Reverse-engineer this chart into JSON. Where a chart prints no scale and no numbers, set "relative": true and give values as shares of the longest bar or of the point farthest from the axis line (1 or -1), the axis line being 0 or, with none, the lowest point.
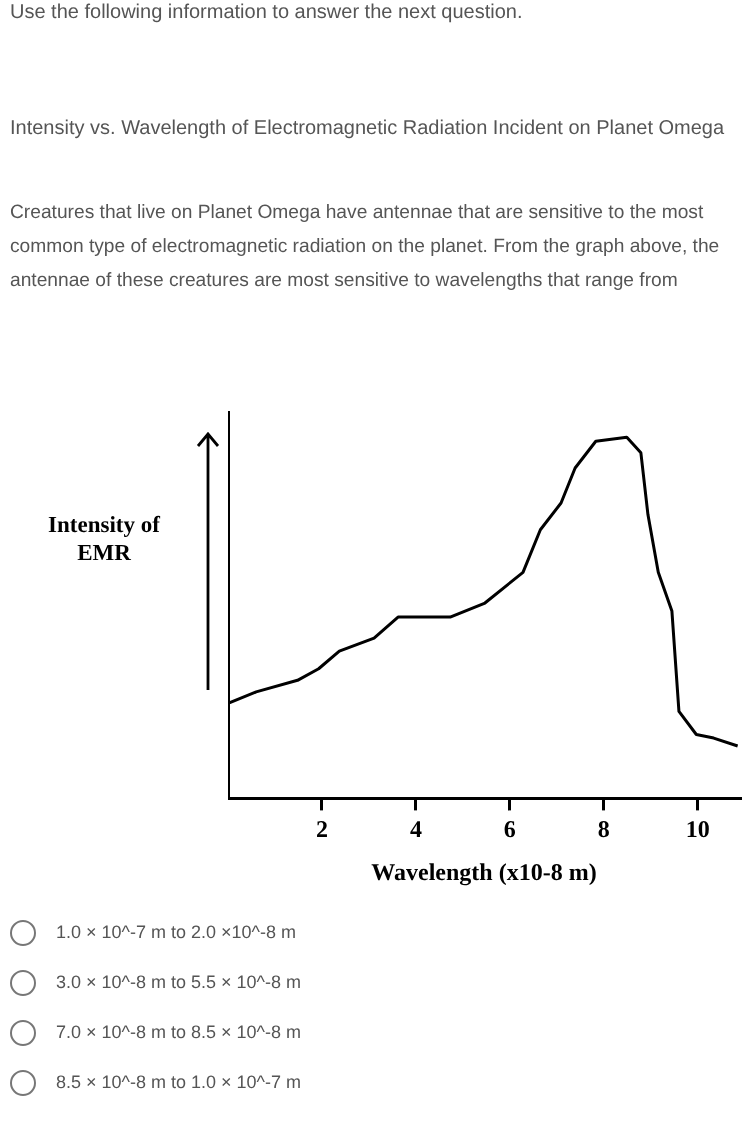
{
  "chart_data": {
    "type": "line",
    "title": "Intensity vs. Wavelength of Electromagnetic Radiation Incident on Planet Omega",
    "xlabel": "Wavelength (x10-8 m)",
    "ylabel": "Intensity of EMR",
    "relative": true,
    "x": [
      0,
      0.6,
      1.48,
      1.93,
      2.37,
      3.11,
      3.62,
      4.73,
      5.47,
      6.28,
      6.65,
      7.09,
      7.39,
      7.83,
      8.49,
      8.79,
      8.94,
      9.16,
      9.45,
      9.6,
      9.97,
      10.34,
      10.85
    ],
    "series": [
      {
        "color": "#000000",
        "values": [
          0.263,
          0.295,
          0.327,
          0.359,
          0.408,
          0.444,
          0.502,
          0.502,
          0.541,
          0.626,
          0.744,
          0.818,
          0.915,
          0.989,
          1.0,
          0.957,
          0.786,
          0.626,
          0.519,
          0.241,
          0.177,
          0.167,
          0.145
        ]
      }
    ],
    "xlim": [
      0,
      10.9
    ],
    "xticks": [
      2,
      4,
      6,
      8,
      10
    ],
    "grid": false,
    "legend": false,
    "marker": "none",
    "line_style": "solid",
    "annotations": [
      "Use the following information to answer the next question.",
      "Creatures that live on Planet Omega have antennae that are sensitive to the most common type of electromagnetic radiation on the planet. From the graph above, the antennae of these creatures are most sensitive to wavelengths that range from",
      "1.0 × 10^-7 m to 2.0 ×10^-8 m",
      "3.0 × 10^-8 m to 5.5 × 10^-8 m",
      "7.0 × 10^-8 m to 8.5 × 10^-8 m",
      "8.5 × 10^-8 m to 1.0 × 10^-7 m"
    ]
  }
}
